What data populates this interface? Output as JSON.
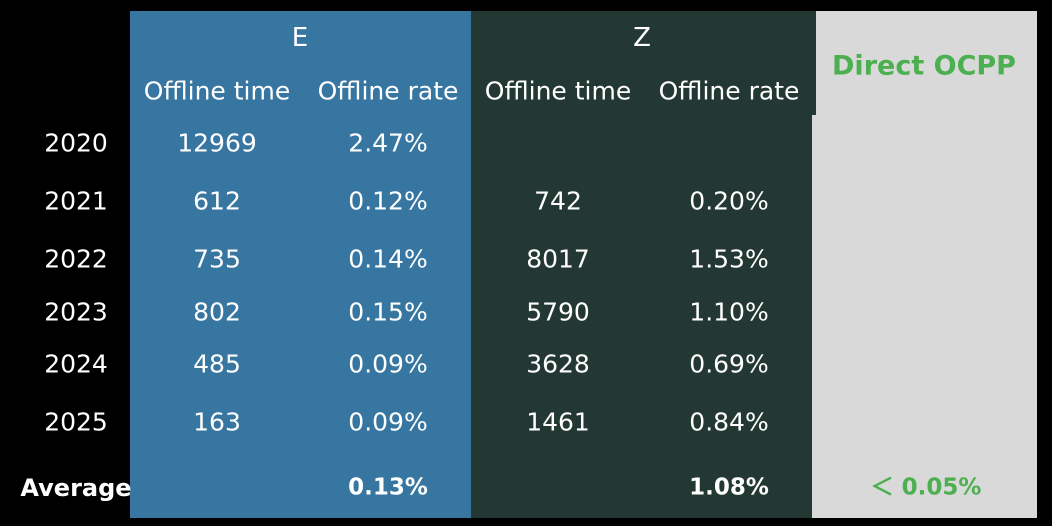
{
  "colors": {
    "background": "#000000",
    "group_e": "#3776a1",
    "group_z": "#233833",
    "direct": "#d9d9d9",
    "direct_text": "#4caf50"
  },
  "chart_data": {
    "type": "table",
    "groups": [
      {
        "name": "E",
        "columns": [
          "Offline time",
          "Offline rate"
        ]
      },
      {
        "name": "Z",
        "columns": [
          "Offline time",
          "Offline rate"
        ]
      },
      {
        "name": "Direct OCPP",
        "columns": []
      }
    ],
    "rows": [
      {
        "year": "2020",
        "e_time": "12969",
        "e_rate": "2.47%",
        "z_time": "",
        "z_rate": ""
      },
      {
        "year": "2021",
        "e_time": "612",
        "e_rate": "0.12%",
        "z_time": "742",
        "z_rate": "0.20%"
      },
      {
        "year": "2022",
        "e_time": "735",
        "e_rate": "0.14%",
        "z_time": "8017",
        "z_rate": "1.53%"
      },
      {
        "year": "2023",
        "e_time": "802",
        "e_rate": "0.15%",
        "z_time": "5790",
        "z_rate": "1.10%"
      },
      {
        "year": "2024",
        "e_time": "485",
        "e_rate": "0.09%",
        "z_time": "3628",
        "z_rate": "0.69%"
      },
      {
        "year": "2025",
        "e_time": "163",
        "e_rate": "0.09%",
        "z_time": "1461",
        "z_rate": "0.84%"
      }
    ],
    "average": {
      "label": "Average",
      "e_rate": "0.13%",
      "z_rate": "1.08%",
      "direct": "＜ 0.05%"
    }
  }
}
